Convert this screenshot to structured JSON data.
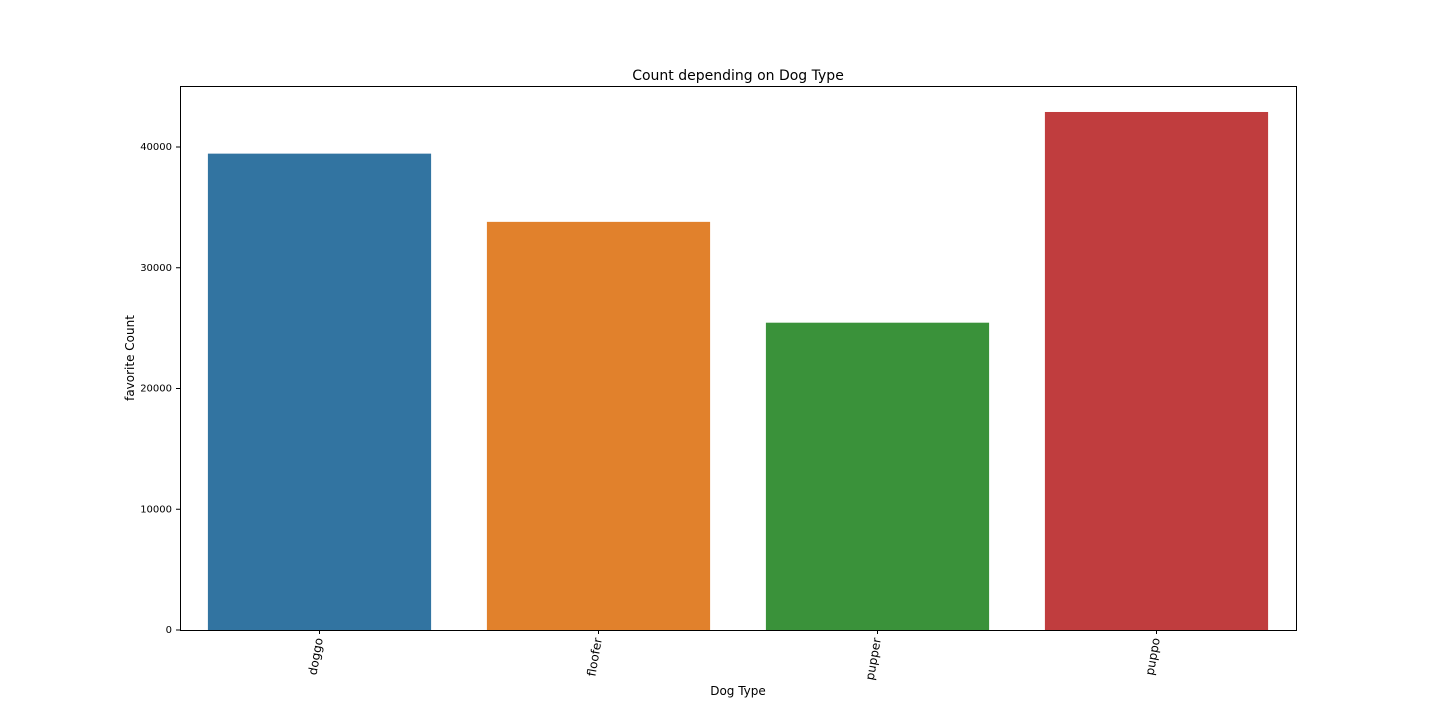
{
  "chart_data": {
    "type": "bar",
    "title": "Count depending on Dog Type",
    "xlabel": "Dog Type",
    "ylabel": "favorite Count",
    "categories": [
      "doggo",
      "floofer",
      "pupper",
      "puppo"
    ],
    "values": [
      39450,
      33800,
      25450,
      42900
    ],
    "colors": [
      "#3274a1",
      "#e1812c",
      "#3a923a",
      "#c03d3e"
    ],
    "ylim": [
      0,
      45000
    ],
    "yticks": [
      0,
      10000,
      20000,
      30000,
      40000
    ],
    "ytick_labels": [
      "0",
      "10000",
      "20000",
      "30000",
      "40000"
    ],
    "grid": false,
    "legend": "none"
  }
}
